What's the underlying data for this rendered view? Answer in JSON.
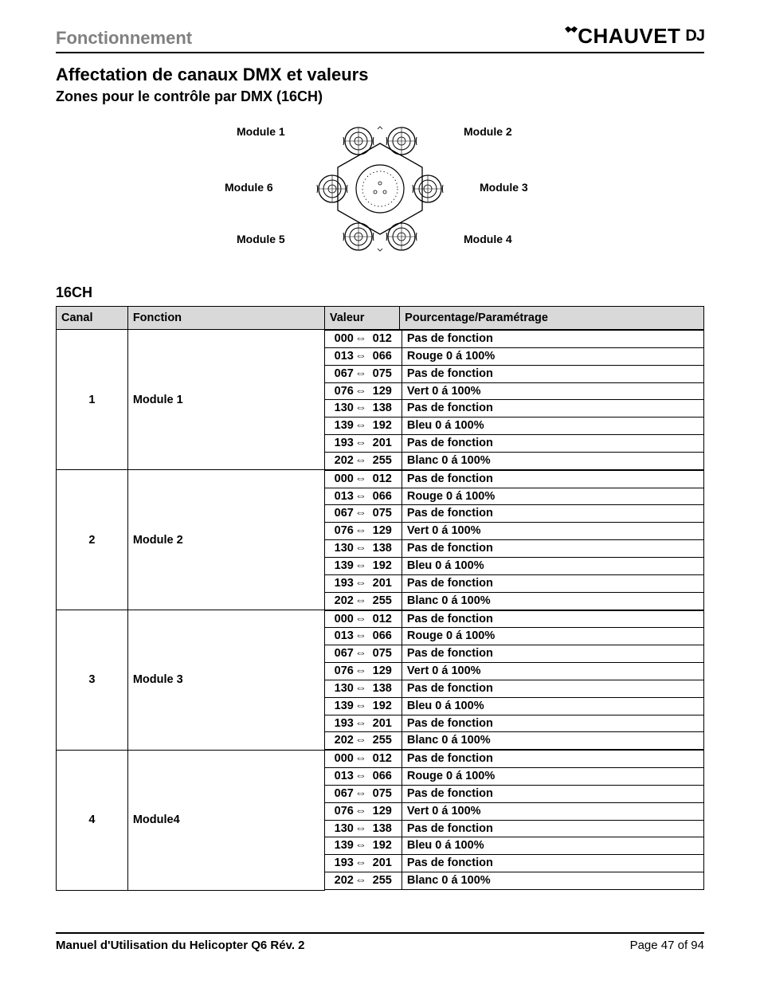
{
  "header": {
    "section": "Fonctionnement",
    "brand": "CHAUVET",
    "brand_suffix": "DJ"
  },
  "titles": {
    "h1": "Affectation de canaux DMX et valeurs",
    "h2": "Zones pour le contrôle par DMX (16CH)",
    "h3": "16CH"
  },
  "diagram": {
    "module1": "Module 1",
    "module2": "Module 2",
    "module3": "Module 3",
    "module4": "Module 4",
    "module5": "Module 5",
    "module6": "Module 6"
  },
  "table": {
    "headers": {
      "canal": "Canal",
      "fonction": "Fonction",
      "valeur": "Valeur",
      "pour": "Pourcentage/Paramétrage"
    },
    "col_widths": {
      "canal": 80,
      "fonction": 220,
      "valeur": 84,
      "pour": 340
    },
    "modules": [
      {
        "canal": "1",
        "fonction": "Module 1"
      },
      {
        "canal": "2",
        "fonction": "Module 2"
      },
      {
        "canal": "3",
        "fonction": "Module 3"
      },
      {
        "canal": "4",
        "fonction": "Module4"
      }
    ],
    "value_rows": [
      {
        "from": "000",
        "to": "012",
        "desc": "Pas de fonction"
      },
      {
        "from": "013",
        "to": "066",
        "desc": "Rouge 0 á 100%"
      },
      {
        "from": "067",
        "to": "075",
        "desc": "Pas de fonction"
      },
      {
        "from": "076",
        "to": "129",
        "desc": "Vert 0 á 100%"
      },
      {
        "from": "130",
        "to": "138",
        "desc": "Pas de fonction"
      },
      {
        "from": "139",
        "to": "192",
        "desc": "Bleu 0 á 100%"
      },
      {
        "from": "193",
        "to": "201",
        "desc": "Pas de fonction"
      },
      {
        "from": "202",
        "to": "255",
        "desc": "Blanc 0 á 100%"
      }
    ],
    "arrow_glyph": "⇔"
  },
  "footer": {
    "left": "Manuel d'Utilisation du Helicopter Q6 Rév. 2",
    "right": "Page 47 of 94"
  },
  "colors": {
    "header_bg": "#d9d9d9",
    "border": "#000000",
    "section_head": "#808080",
    "text": "#000000"
  }
}
